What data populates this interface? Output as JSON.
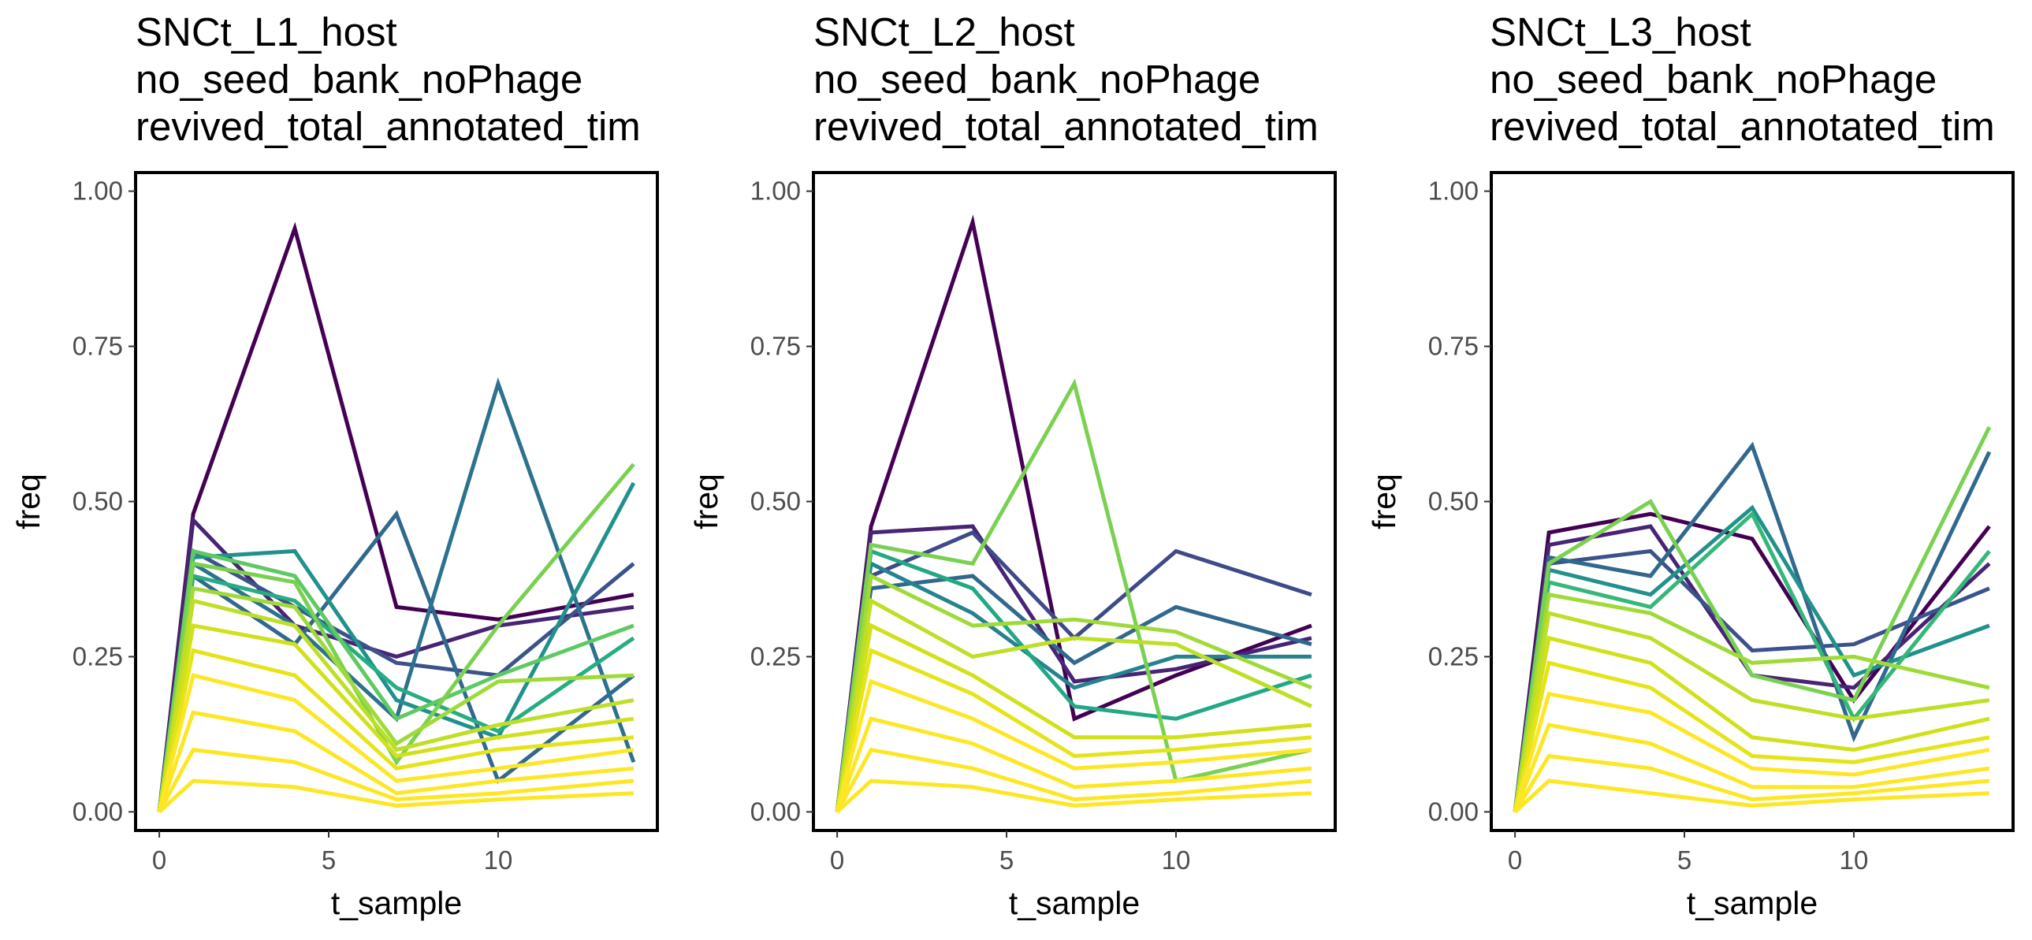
{
  "chart_data": [
    {
      "type": "line",
      "title_lines": [
        "SNCt_L1_host",
        "no_seed_bank_noPhage",
        "revived_total_annotated_tim"
      ],
      "xlabel": "t_sample",
      "ylabel": "freq",
      "xlim": [
        -0.7,
        14.7
      ],
      "ylim": [
        -0.03,
        1.03
      ],
      "x_ticks": [
        0,
        5,
        10
      ],
      "y_ticks": [
        "0.00",
        "0.25",
        "0.50",
        "0.75",
        "1.00"
      ],
      "x": [
        0,
        1,
        4,
        7,
        10,
        14
      ],
      "grid": false,
      "legend": "none",
      "color_scale": "viridis",
      "series": [
        {
          "color": "#440154",
          "values": [
            0,
            0.48,
            0.94,
            0.33,
            0.31,
            0.35
          ]
        },
        {
          "color": "#482475",
          "values": [
            0,
            0.47,
            0.3,
            0.25,
            0.3,
            0.33
          ]
        },
        {
          "color": "#3b528b",
          "values": [
            0,
            0.42,
            0.33,
            0.24,
            0.22,
            0.4
          ]
        },
        {
          "color": "#31688e",
          "values": [
            0,
            0.38,
            0.27,
            0.48,
            0.05,
            0.22
          ]
        },
        {
          "color": "#2c728e",
          "values": [
            0,
            0.4,
            0.3,
            0.15,
            0.69,
            0.08
          ]
        },
        {
          "color": "#21918c",
          "values": [
            0,
            0.41,
            0.42,
            0.18,
            0.12,
            0.53
          ]
        },
        {
          "color": "#27ad81",
          "values": [
            0,
            0.38,
            0.34,
            0.2,
            0.13,
            0.28
          ]
        },
        {
          "color": "#5ec962",
          "values": [
            0,
            0.42,
            0.38,
            0.15,
            0.22,
            0.3
          ]
        },
        {
          "color": "#7ad151",
          "values": [
            0,
            0.4,
            0.37,
            0.08,
            0.3,
            0.56
          ]
        },
        {
          "color": "#a0da39",
          "values": [
            0,
            0.36,
            0.33,
            0.11,
            0.21,
            0.22
          ]
        },
        {
          "color": "#bddf26",
          "values": [
            0,
            0.34,
            0.3,
            0.1,
            0.14,
            0.18
          ]
        },
        {
          "color": "#d0e11c",
          "values": [
            0,
            0.3,
            0.27,
            0.09,
            0.12,
            0.15
          ]
        },
        {
          "color": "#e5e419",
          "values": [
            0,
            0.26,
            0.22,
            0.07,
            0.1,
            0.12
          ]
        },
        {
          "color": "#fde725",
          "values": [
            0,
            0.22,
            0.18,
            0.05,
            0.07,
            0.1
          ]
        },
        {
          "color": "#fde725",
          "values": [
            0,
            0.16,
            0.13,
            0.03,
            0.05,
            0.07
          ]
        },
        {
          "color": "#fde725",
          "values": [
            0,
            0.1,
            0.08,
            0.02,
            0.03,
            0.05
          ]
        },
        {
          "color": "#fde725",
          "values": [
            0,
            0.05,
            0.04,
            0.01,
            0.02,
            0.03
          ]
        }
      ]
    },
    {
      "type": "line",
      "title_lines": [
        "SNCt_L2_host",
        "no_seed_bank_noPhage",
        "revived_total_annotated_tim"
      ],
      "xlabel": "t_sample",
      "ylabel": "freq",
      "xlim": [
        -0.7,
        14.7
      ],
      "ylim": [
        -0.03,
        1.03
      ],
      "x_ticks": [
        0,
        5,
        10
      ],
      "y_ticks": [
        "0.00",
        "0.25",
        "0.50",
        "0.75",
        "1.00"
      ],
      "x": [
        0,
        1,
        4,
        7,
        10,
        14
      ],
      "grid": false,
      "legend": "none",
      "color_scale": "viridis",
      "series": [
        {
          "color": "#440154",
          "values": [
            0,
            0.46,
            0.95,
            0.15,
            0.22,
            0.3
          ]
        },
        {
          "color": "#482475",
          "values": [
            0,
            0.45,
            0.46,
            0.21,
            0.23,
            0.28
          ]
        },
        {
          "color": "#3e4a89",
          "values": [
            0,
            0.38,
            0.45,
            0.28,
            0.42,
            0.35
          ]
        },
        {
          "color": "#31688e",
          "values": [
            0,
            0.36,
            0.38,
            0.24,
            0.33,
            0.27
          ]
        },
        {
          "color": "#26828e",
          "values": [
            0,
            0.4,
            0.32,
            0.2,
            0.25,
            0.25
          ]
        },
        {
          "color": "#22a884",
          "values": [
            0,
            0.42,
            0.36,
            0.17,
            0.15,
            0.22
          ]
        },
        {
          "color": "#7ad151",
          "values": [
            0,
            0.43,
            0.4,
            0.69,
            0.05,
            0.1
          ]
        },
        {
          "color": "#a0da39",
          "values": [
            0,
            0.38,
            0.3,
            0.31,
            0.29,
            0.2
          ]
        },
        {
          "color": "#bddf26",
          "values": [
            0,
            0.34,
            0.25,
            0.28,
            0.27,
            0.17
          ]
        },
        {
          "color": "#d0e11c",
          "values": [
            0,
            0.3,
            0.22,
            0.12,
            0.12,
            0.14
          ]
        },
        {
          "color": "#e5e419",
          "values": [
            0,
            0.26,
            0.19,
            0.09,
            0.1,
            0.12
          ]
        },
        {
          "color": "#fde725",
          "values": [
            0,
            0.21,
            0.15,
            0.07,
            0.08,
            0.1
          ]
        },
        {
          "color": "#fde725",
          "values": [
            0,
            0.15,
            0.11,
            0.04,
            0.05,
            0.07
          ]
        },
        {
          "color": "#fde725",
          "values": [
            0,
            0.1,
            0.07,
            0.02,
            0.03,
            0.05
          ]
        },
        {
          "color": "#fde725",
          "values": [
            0,
            0.05,
            0.04,
            0.01,
            0.02,
            0.03
          ]
        }
      ]
    },
    {
      "type": "line",
      "title_lines": [
        "SNCt_L3_host",
        "no_seed_bank_noPhage",
        "revived_total_annotated_tim"
      ],
      "xlabel": "t_sample",
      "ylabel": "freq",
      "xlim": [
        -0.7,
        14.7
      ],
      "ylim": [
        -0.03,
        1.03
      ],
      "x_ticks": [
        0,
        5,
        10
      ],
      "y_ticks": [
        "0.00",
        "0.25",
        "0.50",
        "0.75",
        "1.00"
      ],
      "x": [
        0,
        1,
        4,
        7,
        10,
        14
      ],
      "grid": false,
      "legend": "none",
      "color_scale": "viridis",
      "series": [
        {
          "color": "#440154",
          "values": [
            0,
            0.45,
            0.48,
            0.44,
            0.18,
            0.46
          ]
        },
        {
          "color": "#482475",
          "values": [
            0,
            0.43,
            0.46,
            0.22,
            0.2,
            0.4
          ]
        },
        {
          "color": "#3b528b",
          "values": [
            0,
            0.4,
            0.42,
            0.26,
            0.27,
            0.36
          ]
        },
        {
          "color": "#31688e",
          "values": [
            0,
            0.41,
            0.38,
            0.59,
            0.12,
            0.58
          ]
        },
        {
          "color": "#21918c",
          "values": [
            0,
            0.39,
            0.35,
            0.49,
            0.22,
            0.3
          ]
        },
        {
          "color": "#35b779",
          "values": [
            0,
            0.37,
            0.33,
            0.48,
            0.15,
            0.42
          ]
        },
        {
          "color": "#7ad151",
          "values": [
            0,
            0.4,
            0.5,
            0.22,
            0.18,
            0.62
          ]
        },
        {
          "color": "#a0da39",
          "values": [
            0,
            0.35,
            0.32,
            0.24,
            0.25,
            0.2
          ]
        },
        {
          "color": "#bddf26",
          "values": [
            0,
            0.32,
            0.28,
            0.18,
            0.15,
            0.18
          ]
        },
        {
          "color": "#d0e11c",
          "values": [
            0,
            0.28,
            0.24,
            0.12,
            0.1,
            0.15
          ]
        },
        {
          "color": "#e5e419",
          "values": [
            0,
            0.24,
            0.2,
            0.09,
            0.08,
            0.12
          ]
        },
        {
          "color": "#fde725",
          "values": [
            0,
            0.19,
            0.16,
            0.07,
            0.06,
            0.1
          ]
        },
        {
          "color": "#fde725",
          "values": [
            0,
            0.14,
            0.11,
            0.04,
            0.04,
            0.07
          ]
        },
        {
          "color": "#fde725",
          "values": [
            0,
            0.09,
            0.07,
            0.02,
            0.03,
            0.05
          ]
        },
        {
          "color": "#fde725",
          "values": [
            0,
            0.05,
            0.03,
            0.01,
            0.02,
            0.03
          ]
        }
      ]
    }
  ]
}
